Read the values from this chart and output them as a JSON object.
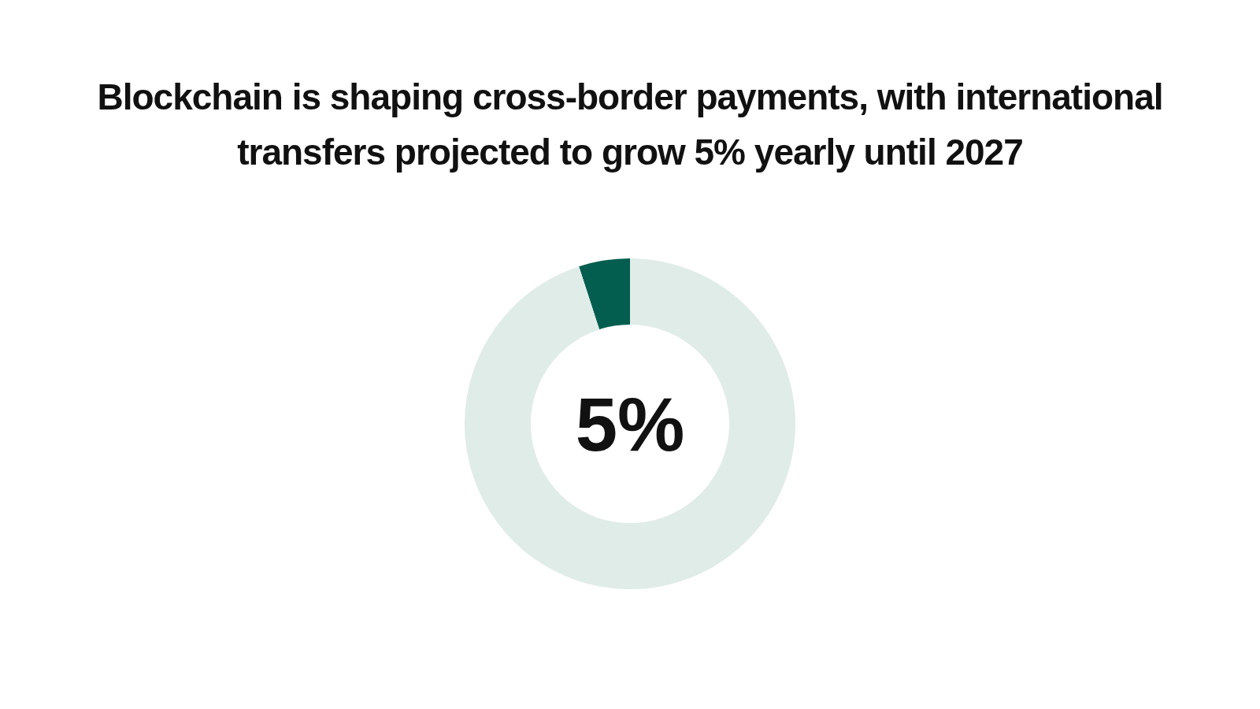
{
  "chart_data": {
    "type": "donut",
    "title": "Blockchain is shaping cross-border payments, with international transfers projected to grow 5% yearly until 2027",
    "categories": [
      null,
      null
    ],
    "values": [
      5,
      95
    ],
    "colors": [
      "#035e50",
      "#e0ece8"
    ],
    "annotations": [
      "5%"
    ],
    "legend": false
  }
}
